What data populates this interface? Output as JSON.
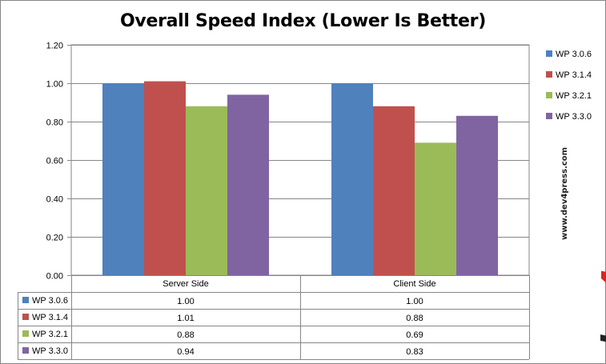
{
  "chart_data": {
    "type": "bar",
    "title": "Overall Speed Index (Lower Is Better)",
    "categories": [
      "Server Side",
      "Client Side"
    ],
    "series": [
      {
        "name": "WP 3.0.6",
        "color": "#4f81bd",
        "values": [
          1.0,
          1.0
        ],
        "labels": [
          "1.00",
          "1.00"
        ]
      },
      {
        "name": "WP 3.1.4",
        "color": "#c0504d",
        "values": [
          1.01,
          0.88
        ],
        "labels": [
          "1.01",
          "0.88"
        ]
      },
      {
        "name": "WP 3.2.1",
        "color": "#9bbb59",
        "values": [
          0.88,
          0.69
        ],
        "labels": [
          "0.88",
          "0.69"
        ]
      },
      {
        "name": "WP 3.3.0",
        "color": "#8064a2",
        "values": [
          0.94,
          0.83
        ],
        "labels": [
          "0.94",
          "0.83"
        ]
      }
    ],
    "ylim": [
      0,
      1.2
    ],
    "yticks": [
      "0.00",
      "0.20",
      "0.40",
      "0.60",
      "0.80",
      "1.00",
      "1.20"
    ],
    "xlabel": "",
    "ylabel": "",
    "grid": true,
    "legend": "right",
    "data_table": true
  },
  "watermark": {
    "logo_pre": "dev",
    "logo_accent": "4",
    "logo_post": "press",
    "url": "www.dev4press.com"
  }
}
